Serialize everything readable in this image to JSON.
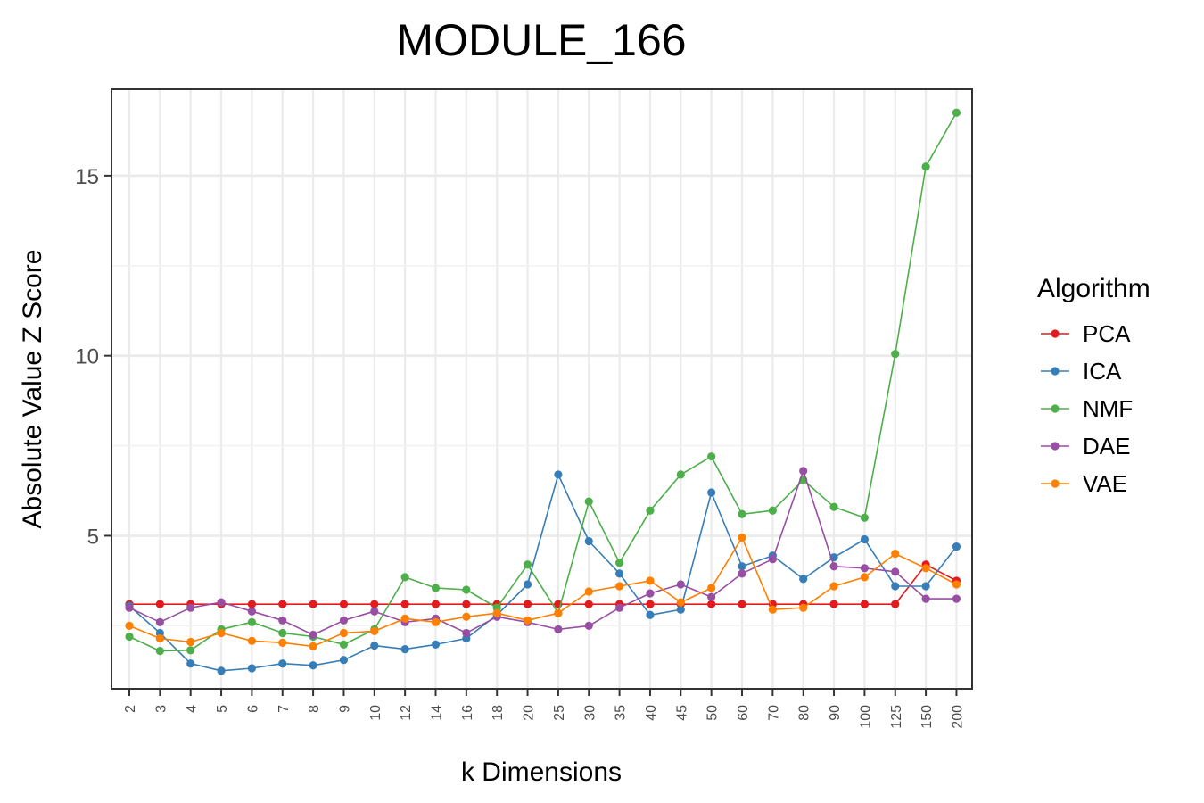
{
  "chart_data": {
    "type": "line",
    "title": "MODULE_166",
    "xlabel": "k Dimensions",
    "ylabel": "Absolute Value Z Score",
    "categories": [
      "2",
      "3",
      "4",
      "5",
      "6",
      "7",
      "8",
      "9",
      "10",
      "12",
      "14",
      "16",
      "18",
      "20",
      "25",
      "30",
      "35",
      "40",
      "45",
      "50",
      "60",
      "70",
      "80",
      "90",
      "100",
      "125",
      "150",
      "200"
    ],
    "ylim": [
      0.75,
      17.4
    ],
    "yticks": [
      5,
      10,
      15
    ],
    "grid": true,
    "legend": {
      "title": "Algorithm",
      "position": "right"
    },
    "series": [
      {
        "name": "PCA",
        "color": "#E41A1C",
        "values": [
          3.1,
          3.1,
          3.1,
          3.1,
          3.1,
          3.1,
          3.1,
          3.1,
          3.1,
          3.1,
          3.1,
          3.1,
          3.1,
          3.1,
          3.1,
          3.1,
          3.1,
          3.1,
          3.1,
          3.1,
          3.1,
          3.1,
          3.1,
          3.1,
          3.1,
          3.1,
          4.2,
          3.75
        ]
      },
      {
        "name": "ICA",
        "color": "#377EB8",
        "values": [
          3.05,
          2.3,
          1.45,
          1.25,
          1.32,
          1.45,
          1.4,
          1.55,
          1.95,
          1.85,
          1.98,
          2.15,
          2.8,
          3.65,
          6.7,
          4.85,
          3.95,
          2.8,
          2.95,
          6.2,
          4.15,
          4.45,
          3.8,
          4.4,
          4.9,
          3.6,
          3.6,
          4.7
        ]
      },
      {
        "name": "NMF",
        "color": "#4DAF4A",
        "values": [
          2.2,
          1.8,
          1.82,
          2.4,
          2.6,
          2.3,
          2.2,
          1.98,
          2.4,
          3.85,
          3.55,
          3.5,
          3.0,
          4.2,
          2.85,
          5.95,
          4.25,
          5.7,
          6.7,
          7.2,
          5.6,
          5.7,
          6.55,
          5.8,
          5.5,
          10.05,
          15.25,
          16.75
        ]
      },
      {
        "name": "DAE",
        "color": "#984EA3",
        "values": [
          3.0,
          2.6,
          3.0,
          3.15,
          2.9,
          2.65,
          2.25,
          2.65,
          2.9,
          2.6,
          2.7,
          2.3,
          2.75,
          2.6,
          2.4,
          2.5,
          3.0,
          3.4,
          3.65,
          3.3,
          3.95,
          4.35,
          6.8,
          4.15,
          4.1,
          4.0,
          3.25,
          3.25
        ]
      },
      {
        "name": "VAE",
        "color": "#FF7F00",
        "values": [
          2.5,
          2.15,
          2.05,
          2.3,
          2.08,
          2.03,
          1.93,
          2.3,
          2.35,
          2.7,
          2.6,
          2.75,
          2.85,
          2.65,
          2.85,
          3.45,
          3.6,
          3.75,
          3.15,
          3.55,
          4.95,
          2.95,
          3.0,
          3.6,
          3.85,
          4.5,
          4.1,
          3.65
        ]
      }
    ]
  }
}
